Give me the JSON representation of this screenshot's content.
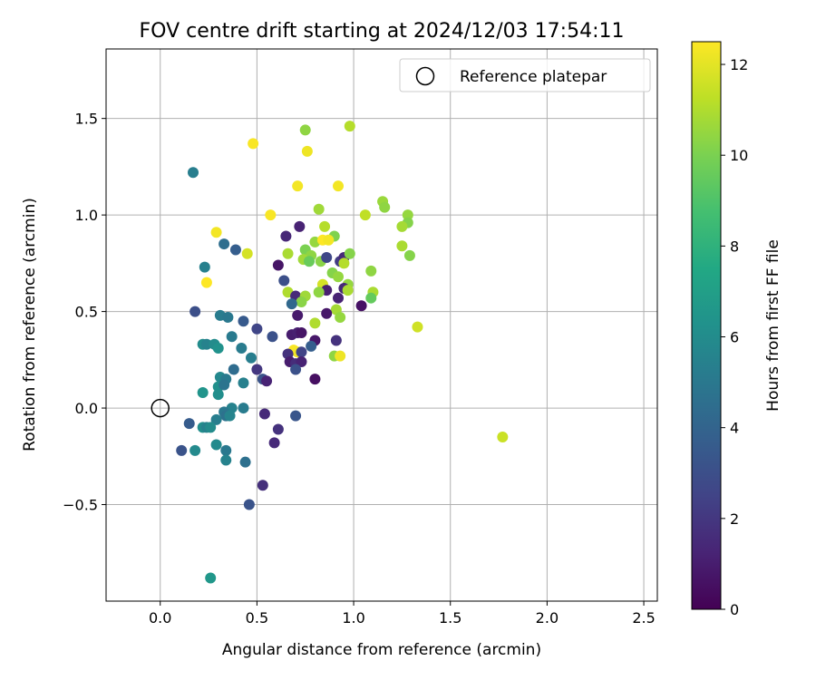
{
  "chart_data": {
    "type": "scatter",
    "title": "FOV centre drift starting at 2024/12/03 17:54:11",
    "xlabel": "Angular distance from reference (arcmin)",
    "ylabel": "Rotation from reference (arcmin)",
    "xlim": [
      -0.28,
      2.57
    ],
    "ylim": [
      -1.0,
      1.86
    ],
    "xticks": [
      0.0,
      0.5,
      1.0,
      1.5,
      2.0,
      2.5
    ],
    "xtick_labels": [
      "0.0",
      "0.5",
      "1.0",
      "1.5",
      "2.0",
      "2.5"
    ],
    "yticks": [
      -0.5,
      0.0,
      0.5,
      1.0,
      1.5
    ],
    "ytick_labels": [
      "−0.5",
      "0.0",
      "0.5",
      "1.0",
      "1.5"
    ],
    "grid": true,
    "legend": {
      "placement": "top-right",
      "entries": [
        "Reference platepar"
      ]
    },
    "reference_point": {
      "x": 0.0,
      "y": 0.0
    },
    "colormap": "viridis",
    "colorbar": {
      "label": "Hours from first FF file",
      "range": [
        0,
        12.5
      ],
      "ticks": [
        0,
        2,
        4,
        6,
        8,
        10,
        12
      ],
      "tick_labels": [
        "0",
        "2",
        "4",
        "6",
        "8",
        "10",
        "12"
      ]
    },
    "points": [
      {
        "x": 0.48,
        "y": 1.37,
        "h": 12.4
      },
      {
        "x": 0.75,
        "y": 1.44,
        "h": 10.4
      },
      {
        "x": 0.98,
        "y": 1.46,
        "h": 11.1
      },
      {
        "x": 0.76,
        "y": 1.33,
        "h": 12.2
      },
      {
        "x": 0.17,
        "y": 1.22,
        "h": 5.3
      },
      {
        "x": 0.71,
        "y": 1.15,
        "h": 12.3
      },
      {
        "x": 0.92,
        "y": 1.15,
        "h": 12.3
      },
      {
        "x": 0.57,
        "y": 1.0,
        "h": 12.4
      },
      {
        "x": 0.82,
        "y": 1.03,
        "h": 10.7
      },
      {
        "x": 1.06,
        "y": 1.0,
        "h": 11.3
      },
      {
        "x": 1.15,
        "y": 1.07,
        "h": 10.6
      },
      {
        "x": 1.16,
        "y": 1.04,
        "h": 10.4
      },
      {
        "x": 1.28,
        "y": 1.0,
        "h": 10.5
      },
      {
        "x": 1.28,
        "y": 0.96,
        "h": 10.2
      },
      {
        "x": 1.25,
        "y": 0.94,
        "h": 10.8
      },
      {
        "x": 0.72,
        "y": 0.94,
        "h": 1.2
      },
      {
        "x": 0.85,
        "y": 0.94,
        "h": 11.1
      },
      {
        "x": 0.29,
        "y": 0.91,
        "h": 12.3
      },
      {
        "x": 0.65,
        "y": 0.89,
        "h": 1.4
      },
      {
        "x": 0.9,
        "y": 0.89,
        "h": 10.1
      },
      {
        "x": 0.8,
        "y": 0.86,
        "h": 10.5
      },
      {
        "x": 0.84,
        "y": 0.87,
        "h": 12.5
      },
      {
        "x": 0.87,
        "y": 0.87,
        "h": 12.3
      },
      {
        "x": 0.33,
        "y": 0.85,
        "h": 4.5
      },
      {
        "x": 0.39,
        "y": 0.82,
        "h": 3.7
      },
      {
        "x": 0.45,
        "y": 0.8,
        "h": 11.7
      },
      {
        "x": 0.66,
        "y": 0.8,
        "h": 10.9
      },
      {
        "x": 0.75,
        "y": 0.82,
        "h": 10.0
      },
      {
        "x": 0.78,
        "y": 0.79,
        "h": 10.4
      },
      {
        "x": 0.74,
        "y": 0.77,
        "h": 10.7
      },
      {
        "x": 0.77,
        "y": 0.76,
        "h": 9.6
      },
      {
        "x": 0.83,
        "y": 0.76,
        "h": 10.3
      },
      {
        "x": 0.86,
        "y": 0.78,
        "h": 2.7
      },
      {
        "x": 0.93,
        "y": 0.76,
        "h": 2.2
      },
      {
        "x": 0.95,
        "y": 0.78,
        "h": 1.5
      },
      {
        "x": 0.98,
        "y": 0.8,
        "h": 10.2
      },
      {
        "x": 0.95,
        "y": 0.75,
        "h": 11.1
      },
      {
        "x": 1.25,
        "y": 0.84,
        "h": 10.9
      },
      {
        "x": 1.29,
        "y": 0.79,
        "h": 10.2
      },
      {
        "x": 0.23,
        "y": 0.73,
        "h": 5.4
      },
      {
        "x": 0.61,
        "y": 0.74,
        "h": 0.7
      },
      {
        "x": 1.09,
        "y": 0.71,
        "h": 10.4
      },
      {
        "x": 0.89,
        "y": 0.7,
        "h": 10.2
      },
      {
        "x": 0.92,
        "y": 0.68,
        "h": 10.5
      },
      {
        "x": 0.64,
        "y": 0.66,
        "h": 3.0
      },
      {
        "x": 0.24,
        "y": 0.65,
        "h": 12.5
      },
      {
        "x": 0.84,
        "y": 0.64,
        "h": 11.7
      },
      {
        "x": 0.97,
        "y": 0.64,
        "h": 10.5
      },
      {
        "x": 0.86,
        "y": 0.61,
        "h": 1.1
      },
      {
        "x": 0.95,
        "y": 0.62,
        "h": 1.4
      },
      {
        "x": 0.97,
        "y": 0.61,
        "h": 10.9
      },
      {
        "x": 0.66,
        "y": 0.6,
        "h": 11.0
      },
      {
        "x": 0.7,
        "y": 0.58,
        "h": 1.5
      },
      {
        "x": 0.75,
        "y": 0.58,
        "h": 10.7
      },
      {
        "x": 0.82,
        "y": 0.6,
        "h": 10.4
      },
      {
        "x": 1.1,
        "y": 0.6,
        "h": 10.9
      },
      {
        "x": 1.09,
        "y": 0.57,
        "h": 9.5
      },
      {
        "x": 0.92,
        "y": 0.57,
        "h": 1.2
      },
      {
        "x": 0.73,
        "y": 0.55,
        "h": 10.3
      },
      {
        "x": 0.68,
        "y": 0.54,
        "h": 4.2
      },
      {
        "x": 1.04,
        "y": 0.53,
        "h": 0.6
      },
      {
        "x": 0.91,
        "y": 0.51,
        "h": 10.8
      },
      {
        "x": 0.18,
        "y": 0.5,
        "h": 3.0
      },
      {
        "x": 0.71,
        "y": 0.48,
        "h": 0.9
      },
      {
        "x": 0.86,
        "y": 0.49,
        "h": 0.8
      },
      {
        "x": 0.93,
        "y": 0.47,
        "h": 10.5
      },
      {
        "x": 0.31,
        "y": 0.48,
        "h": 5.2
      },
      {
        "x": 0.35,
        "y": 0.47,
        "h": 5.0
      },
      {
        "x": 0.43,
        "y": 0.45,
        "h": 3.5
      },
      {
        "x": 0.8,
        "y": 0.44,
        "h": 11.0
      },
      {
        "x": 1.33,
        "y": 0.42,
        "h": 11.6
      },
      {
        "x": 0.5,
        "y": 0.41,
        "h": 2.6
      },
      {
        "x": 0.68,
        "y": 0.38,
        "h": 1.0
      },
      {
        "x": 0.71,
        "y": 0.39,
        "h": 1.1
      },
      {
        "x": 0.73,
        "y": 0.39,
        "h": 0.7
      },
      {
        "x": 0.58,
        "y": 0.37,
        "h": 3.1
      },
      {
        "x": 0.37,
        "y": 0.37,
        "h": 5.1
      },
      {
        "x": 0.8,
        "y": 0.35,
        "h": 0.8
      },
      {
        "x": 0.91,
        "y": 0.35,
        "h": 1.8
      },
      {
        "x": 0.78,
        "y": 0.32,
        "h": 3.7
      },
      {
        "x": 0.22,
        "y": 0.33,
        "h": 6.0
      },
      {
        "x": 0.24,
        "y": 0.33,
        "h": 5.5
      },
      {
        "x": 0.28,
        "y": 0.33,
        "h": 6.0
      },
      {
        "x": 0.3,
        "y": 0.31,
        "h": 6.3
      },
      {
        "x": 0.42,
        "y": 0.31,
        "h": 5.2
      },
      {
        "x": 0.69,
        "y": 0.3,
        "h": 12.4
      },
      {
        "x": 0.71,
        "y": 0.29,
        "h": 12.3
      },
      {
        "x": 0.66,
        "y": 0.28,
        "h": 1.8
      },
      {
        "x": 0.73,
        "y": 0.29,
        "h": 2.5
      },
      {
        "x": 0.9,
        "y": 0.27,
        "h": 10.4
      },
      {
        "x": 0.93,
        "y": 0.27,
        "h": 12.2
      },
      {
        "x": 0.47,
        "y": 0.26,
        "h": 5.3
      },
      {
        "x": 0.67,
        "y": 0.24,
        "h": 1.0
      },
      {
        "x": 0.7,
        "y": 0.23,
        "h": 1.6
      },
      {
        "x": 0.73,
        "y": 0.24,
        "h": 1.2
      },
      {
        "x": 0.5,
        "y": 0.2,
        "h": 2.0
      },
      {
        "x": 0.7,
        "y": 0.2,
        "h": 3.1
      },
      {
        "x": 0.38,
        "y": 0.2,
        "h": 4.4
      },
      {
        "x": 0.31,
        "y": 0.16,
        "h": 5.8
      },
      {
        "x": 0.34,
        "y": 0.15,
        "h": 5.1
      },
      {
        "x": 0.53,
        "y": 0.15,
        "h": 3.2
      },
      {
        "x": 0.55,
        "y": 0.14,
        "h": 1.2
      },
      {
        "x": 0.8,
        "y": 0.15,
        "h": 0.5
      },
      {
        "x": 0.3,
        "y": 0.11,
        "h": 6.2
      },
      {
        "x": 0.33,
        "y": 0.12,
        "h": 4.8
      },
      {
        "x": 0.43,
        "y": 0.13,
        "h": 5.4
      },
      {
        "x": 0.22,
        "y": 0.08,
        "h": 6.4
      },
      {
        "x": 0.3,
        "y": 0.07,
        "h": 6.1
      },
      {
        "x": 0.37,
        "y": 0.0,
        "h": 5.5
      },
      {
        "x": 0.43,
        "y": 0.0,
        "h": 5.2
      },
      {
        "x": 0.33,
        "y": -0.02,
        "h": 5.0
      },
      {
        "x": 0.34,
        "y": -0.04,
        "h": 4.7
      },
      {
        "x": 0.36,
        "y": -0.04,
        "h": 5.6
      },
      {
        "x": 0.54,
        "y": -0.03,
        "h": 1.5
      },
      {
        "x": 0.7,
        "y": -0.04,
        "h": 3.3
      },
      {
        "x": 0.29,
        "y": -0.06,
        "h": 5.3
      },
      {
        "x": 0.15,
        "y": -0.08,
        "h": 3.6
      },
      {
        "x": 0.22,
        "y": -0.1,
        "h": 6.1
      },
      {
        "x": 0.24,
        "y": -0.1,
        "h": 5.5
      },
      {
        "x": 0.26,
        "y": -0.1,
        "h": 6.0
      },
      {
        "x": 0.61,
        "y": -0.11,
        "h": 1.8
      },
      {
        "x": 0.59,
        "y": -0.18,
        "h": 1.5
      },
      {
        "x": 0.29,
        "y": -0.19,
        "h": 5.9
      },
      {
        "x": 0.11,
        "y": -0.22,
        "h": 3.2
      },
      {
        "x": 0.18,
        "y": -0.22,
        "h": 5.9
      },
      {
        "x": 0.34,
        "y": -0.22,
        "h": 5.0
      },
      {
        "x": 0.34,
        "y": -0.27,
        "h": 5.5
      },
      {
        "x": 0.44,
        "y": -0.28,
        "h": 4.6
      },
      {
        "x": 0.53,
        "y": -0.4,
        "h": 1.7
      },
      {
        "x": 0.46,
        "y": -0.5,
        "h": 3.2
      },
      {
        "x": 0.26,
        "y": -0.88,
        "h": 6.6
      },
      {
        "x": 1.77,
        "y": -0.15,
        "h": 11.5
      }
    ]
  }
}
